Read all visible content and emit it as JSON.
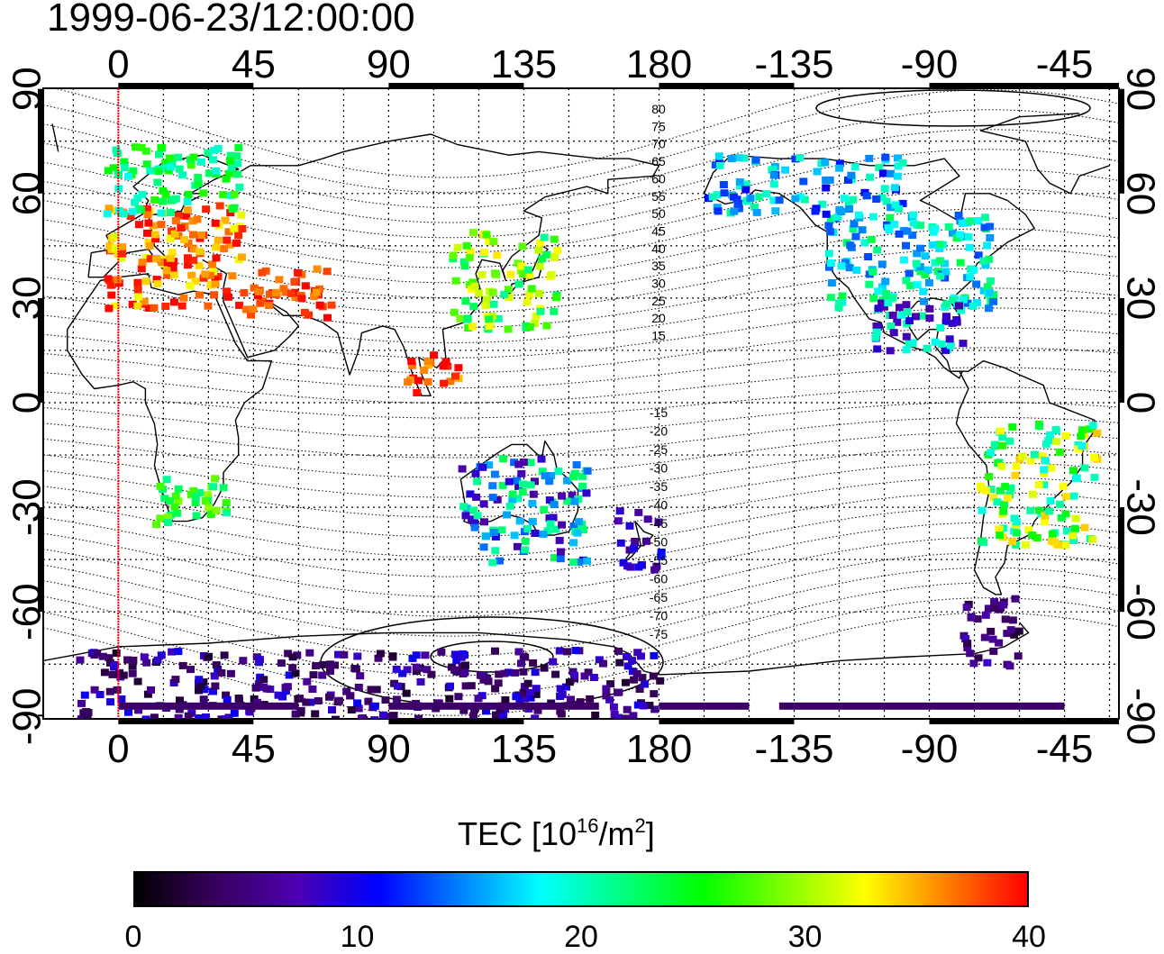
{
  "title": "1999-06-23/12:00:00",
  "map": {
    "lon_ticks_top": [
      "0",
      "45",
      "90",
      "135",
      "180",
      "-135",
      "-90",
      "-45"
    ],
    "lon_ticks_bottom": [
      "0",
      "45",
      "90",
      "135",
      "180",
      "-135",
      "-90",
      "-45"
    ],
    "lat_ticks_left": [
      "90",
      "60",
      "30",
      "0",
      "-30",
      "-60",
      "-90"
    ],
    "lat_ticks_right": [
      "90",
      "60",
      "30",
      "0",
      "-30",
      "-60",
      "-90"
    ],
    "contour_labels": [
      "80",
      "75",
      "70",
      "65",
      "60",
      "55",
      "50",
      "45",
      "40",
      "35",
      "30",
      "25",
      "20",
      "15",
      "-15",
      "-20",
      "-25",
      "-30",
      "-35",
      "-40",
      "-45",
      "-50",
      "-55",
      "-60",
      "-65",
      "-70",
      "-75"
    ],
    "grid": "dotted",
    "reference_line_color": "#ff0000"
  },
  "colorbar": {
    "label_prefix": "TEC  [10",
    "label_exp1": "16",
    "label_mid": "/m",
    "label_exp2": "2",
    "label_suffix": "]",
    "ticks": [
      "0",
      "10",
      "20",
      "30",
      "40"
    ],
    "range": [
      0,
      40
    ],
    "colors": [
      "#000000",
      "#3a0060",
      "#4b00b0",
      "#0000ff",
      "#0080ff",
      "#00ffff",
      "#00ff80",
      "#00ff00",
      "#80ff00",
      "#ffff00",
      "#ff8000",
      "#ff0000"
    ]
  },
  "tec_regions": [
    {
      "name": "europe",
      "lon": [
        -5,
        40
      ],
      "lat": [
        28,
        58
      ],
      "values": [
        35,
        40,
        38,
        33
      ]
    },
    {
      "name": "scandinavia",
      "lon": [
        -5,
        40
      ],
      "lat": [
        55,
        75
      ],
      "values": [
        20,
        23,
        26
      ]
    },
    {
      "name": "east-asia",
      "lon": [
        110,
        145
      ],
      "lat": [
        22,
        50
      ],
      "values": [
        22,
        28,
        32
      ]
    },
    {
      "name": "middle-east",
      "lon": [
        40,
        70
      ],
      "lat": [
        25,
        40
      ],
      "values": [
        37,
        39
      ]
    },
    {
      "name": "southeast-asia",
      "lon": [
        95,
        112
      ],
      "lat": [
        0,
        15
      ],
      "values": [
        36,
        40
      ]
    },
    {
      "name": "north-america",
      "lon": [
        -125,
        -70
      ],
      "lat": [
        28,
        55
      ],
      "values": [
        14,
        18,
        22
      ]
    },
    {
      "name": "canada-alaska",
      "lon": [
        -165,
        -100
      ],
      "lat": [
        55,
        72
      ],
      "values": [
        12,
        16,
        20
      ]
    },
    {
      "name": "central-america",
      "lon": [
        -110,
        -80
      ],
      "lat": [
        15,
        30
      ],
      "values": [
        8,
        20
      ]
    },
    {
      "name": "south-america",
      "lon": [
        -75,
        -35
      ],
      "lat": [
        -40,
        -5
      ],
      "values": [
        20,
        25,
        33
      ]
    },
    {
      "name": "patagonia",
      "lon": [
        -80,
        -60
      ],
      "lat": [
        -75,
        -55
      ],
      "values": [
        3,
        5,
        7
      ]
    },
    {
      "name": "australia",
      "lon": [
        112,
        155
      ],
      "lat": [
        -45,
        -15
      ],
      "values": [
        8,
        15,
        22
      ]
    },
    {
      "name": "new-zealand",
      "lon": [
        165,
        180
      ],
      "lat": [
        -47,
        -30
      ],
      "values": [
        6,
        10
      ]
    },
    {
      "name": "antarctica",
      "lon": [
        -15,
        180
      ],
      "lat": [
        -90,
        -70
      ],
      "values": [
        3,
        5,
        9
      ]
    },
    {
      "name": "africa-south",
      "lon": [
        10,
        35
      ],
      "lat": [
        -35,
        -20
      ],
      "values": [
        22,
        28
      ]
    }
  ]
}
